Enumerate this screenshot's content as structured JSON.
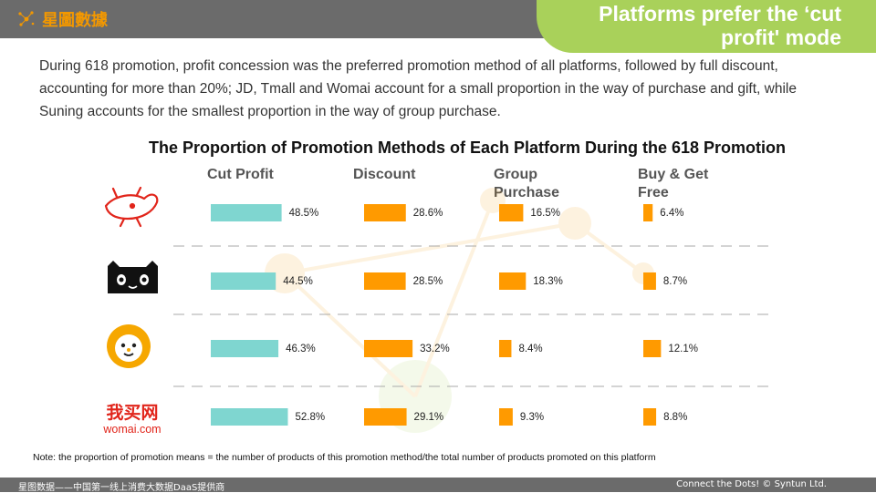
{
  "header": {
    "brand": "星圖數據",
    "title_line1": "Platforms prefer the ‘cut",
    "title_line2": "profit' mode"
  },
  "description": "During 618 promotion, profit concession was the preferred promotion method of all platforms, followed by full discount, accounting for more than 20%; JD, Tmall and Womai account for a small proportion in the way of purchase and gift, while Suning accounts for the smallest proportion in the way of group purchase.",
  "platform_logos": {
    "womai_cn": "我买网",
    "womai_en": "womai.com"
  },
  "note": "Note: the proportion of promotion means = the number of products of this promotion method/the total number of products promoted on this platform",
  "footer": {
    "left": "星图数据——中国第一线上消费大数据DaaS提供商",
    "right": "Connect the Dots! © Syntun Ltd."
  },
  "colors": {
    "accent_green": "#a9d15a",
    "bar_cut_profit": "#7fd6d0",
    "bar_other": "#ff9a00",
    "brand_orange": "#f39800",
    "header_gray": "#6b6b6b"
  },
  "chart_data": {
    "type": "bar",
    "title": "The Proportion of Promotion Methods of Each Platform During the 618 Promotion",
    "categories": [
      "JD",
      "Tmall",
      "Suning",
      "Womai"
    ],
    "series": [
      {
        "name": "Cut Profit",
        "values": [
          48.5,
          44.5,
          46.3,
          52.8
        ],
        "labels": [
          "48.5%",
          "44.5%",
          "46.3%",
          "52.8%"
        ]
      },
      {
        "name": "Discount",
        "values": [
          28.6,
          28.5,
          33.2,
          29.1
        ],
        "labels": [
          "28.6%",
          "28.5%",
          "33.2%",
          "29.1%"
        ]
      },
      {
        "name": "Group Purchase",
        "values": [
          16.5,
          18.3,
          8.4,
          9.3
        ],
        "labels": [
          "16.5%",
          "18.3%",
          "8.4%",
          "9.3%"
        ]
      },
      {
        "name": "Buy & Get Free",
        "values": [
          6.4,
          8.7,
          12.1,
          8.8
        ],
        "labels": [
          "6.4%",
          "8.7%",
          "12.1%",
          "8.8%"
        ]
      }
    ],
    "column_headers": [
      [
        "Cut Profit"
      ],
      [
        "Discount"
      ],
      [
        "Group",
        "Purchase"
      ],
      [
        "Buy & Get",
        "Free"
      ]
    ],
    "unit": "%",
    "legend": "none"
  }
}
